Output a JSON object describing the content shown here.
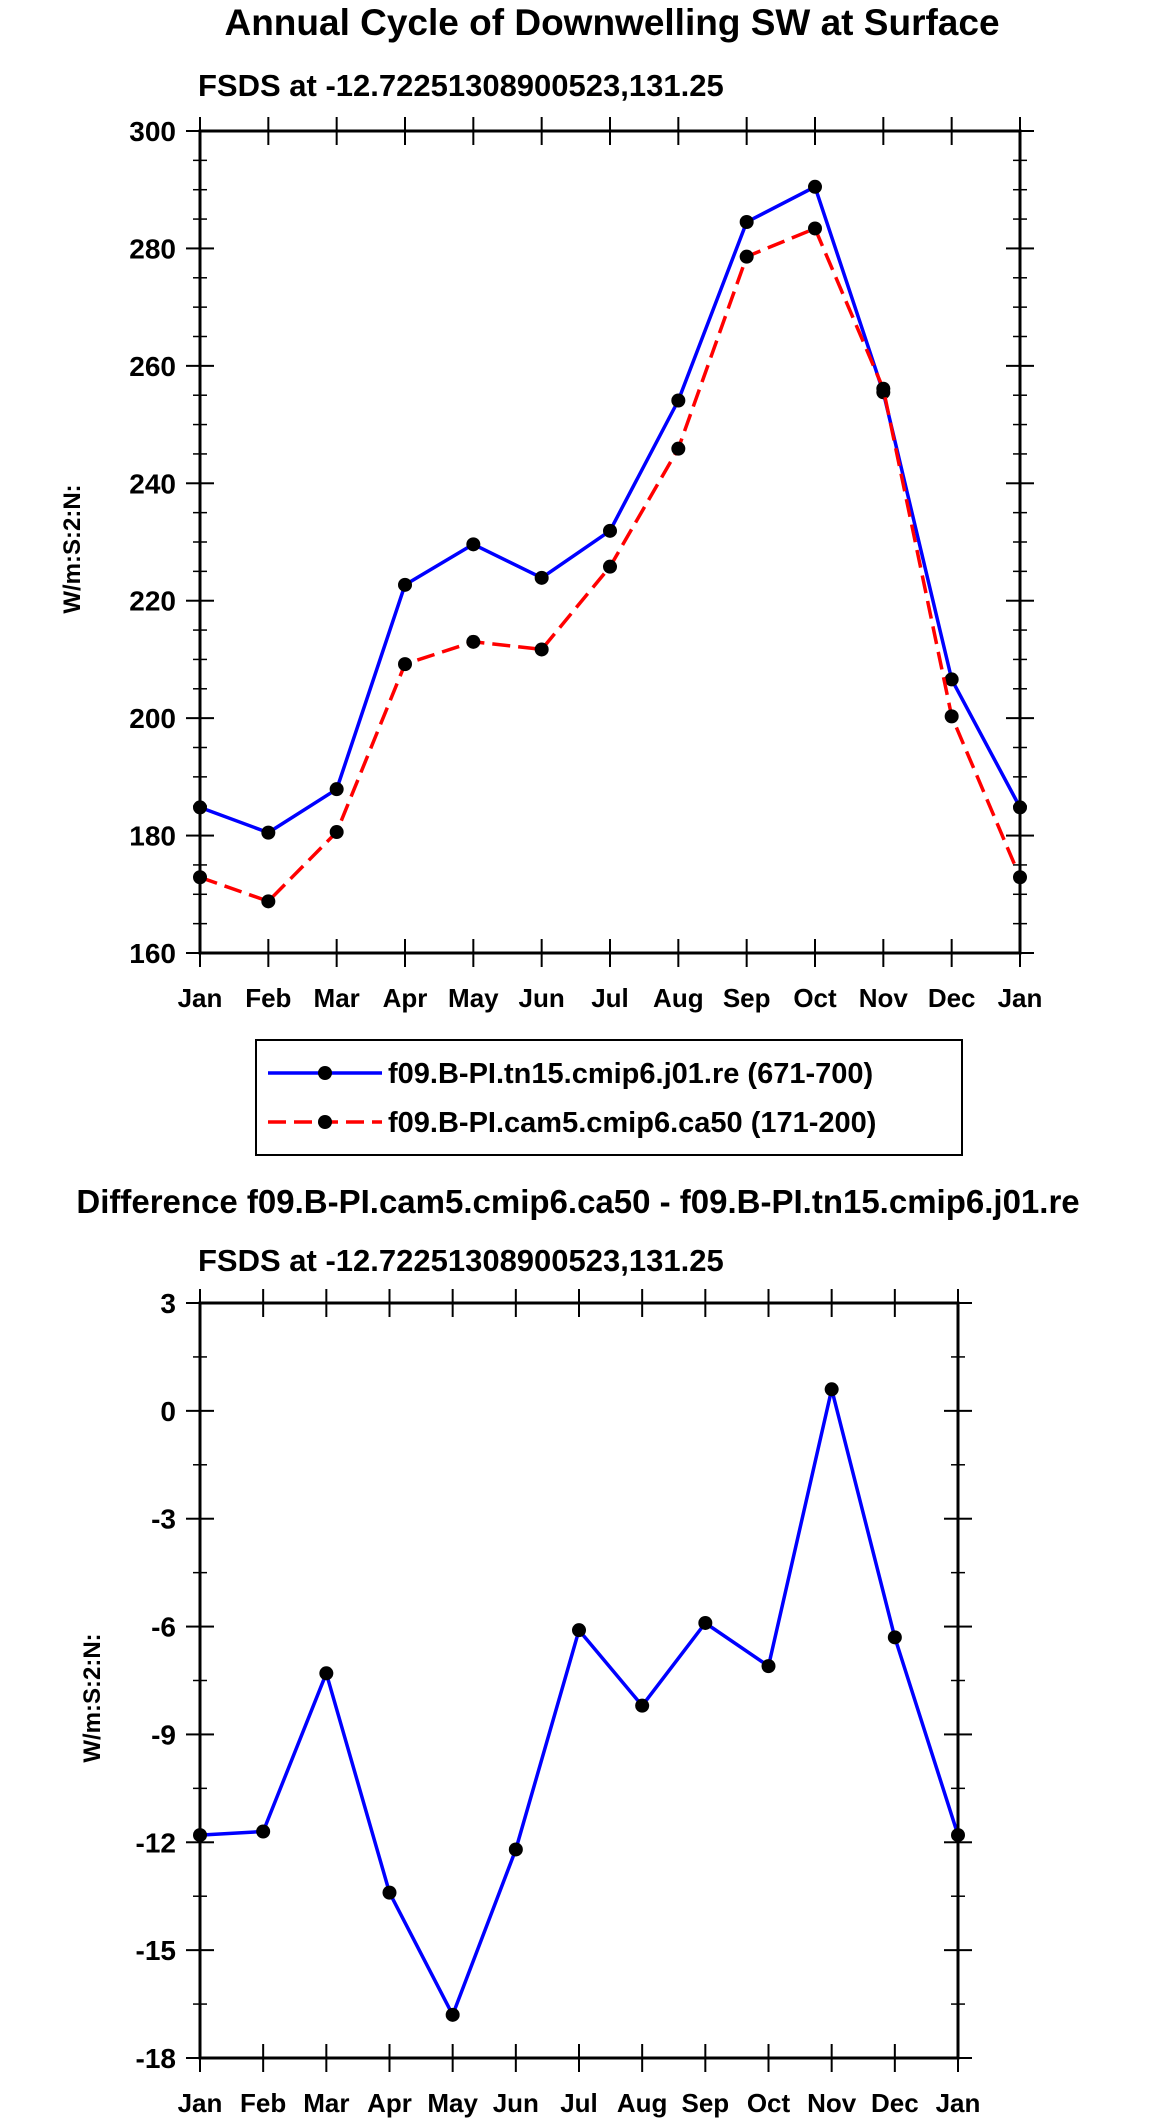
{
  "chart_data": [
    {
      "type": "line",
      "title": "Annual Cycle of Downwelling SW at Surface",
      "subtitle": "FSDS at -12.72251308900523,131.25",
      "xlabel": "",
      "ylabel": "W/m:S:2:N:",
      "categories": [
        "Jan",
        "Feb",
        "Mar",
        "Apr",
        "May",
        "Jun",
        "Jul",
        "Aug",
        "Sep",
        "Oct",
        "Nov",
        "Dec",
        "Jan"
      ],
      "ylim": [
        160,
        300
      ],
      "yticks": [
        160,
        180,
        200,
        220,
        240,
        260,
        280,
        300
      ],
      "ytick_labels": [
        "160",
        "180",
        "200",
        "220",
        "240",
        "260",
        "280",
        "300"
      ],
      "grid": false,
      "legend_position": "below",
      "series": [
        {
          "name": "f09.B-PI.tn15.cmip6.j01.re (671-700)",
          "color": "#0000ff",
          "dash": "solid",
          "values": [
            184.8,
            180.5,
            187.9,
            222.7,
            229.6,
            223.9,
            231.9,
            254.1,
            284.5,
            290.5,
            255.5,
            206.6,
            184.8
          ]
        },
        {
          "name": "f09.B-PI.cam5.cmip6.ca50 (171-200)",
          "color": "#ff0000",
          "dash": "dashed",
          "values": [
            172.9,
            168.8,
            180.6,
            209.2,
            213.0,
            211.7,
            225.8,
            245.9,
            278.6,
            283.4,
            256.1,
            200.3,
            172.9
          ]
        }
      ]
    },
    {
      "type": "line",
      "title": "Difference f09.B-PI.cam5.cmip6.ca50 - f09.B-PI.tn15.cmip6.j01.re",
      "subtitle": "FSDS at -12.72251308900523,131.25",
      "xlabel": "",
      "ylabel": "W/m:S:2:N:",
      "categories": [
        "Jan",
        "Feb",
        "Mar",
        "Apr",
        "May",
        "Jun",
        "Jul",
        "Aug",
        "Sep",
        "Oct",
        "Nov",
        "Dec",
        "Jan"
      ],
      "ylim": [
        -18,
        3
      ],
      "yticks": [
        -18,
        -15,
        -12,
        -9,
        -6,
        -3,
        0,
        3
      ],
      "ytick_labels": [
        "-18",
        "-15",
        "-12",
        "-9",
        "-6",
        "-3",
        "0",
        "3"
      ],
      "grid": false,
      "series": [
        {
          "name": "difference",
          "color": "#0000ff",
          "dash": "solid",
          "values": [
            -11.8,
            -11.7,
            -7.3,
            -13.4,
            -16.8,
            -12.2,
            -6.1,
            -8.2,
            -5.9,
            -7.1,
            0.6,
            -6.3,
            -11.8
          ]
        }
      ]
    }
  ]
}
